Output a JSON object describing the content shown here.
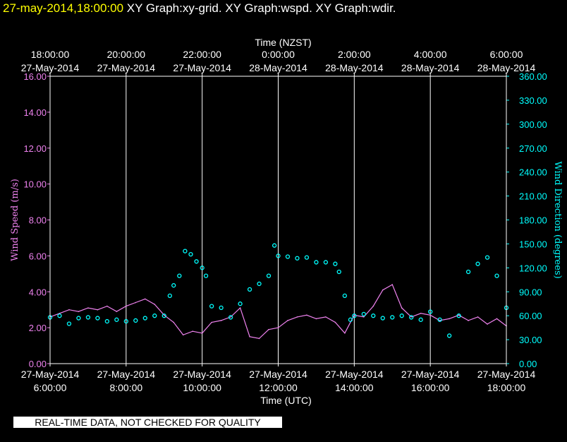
{
  "header": {
    "timestamp": "27-may-2014,18:00:00",
    "graphs": "XY Graph:xy-grid.  XY Graph:wspd.  XY Graph:wdir."
  },
  "notice": "REAL-TIME DATA, NOT CHECKED FOR QUALITY",
  "colors": {
    "speed": "#ee82ee",
    "direction": "#00ffff",
    "frame": "#ffffff",
    "background": "#000000"
  },
  "chart_data": {
    "type": "line",
    "x_start_utc": "27-May-2014 6:00:00",
    "x_end_utc": "27-May-2014 18:00:00",
    "xlim_hours_utc": [
      6,
      18
    ],
    "x_bottom": {
      "label": "Time (UTC)",
      "ticks": [
        {
          "x": 6,
          "line1": "27-May-2014",
          "line2": "6:00:00"
        },
        {
          "x": 8,
          "line1": "27-May-2014",
          "line2": "8:00:00"
        },
        {
          "x": 10,
          "line1": "27-May-2014",
          "line2": "10:00:00"
        },
        {
          "x": 12,
          "line1": "27-May-2014",
          "line2": "12:00:00"
        },
        {
          "x": 14,
          "line1": "27-May-2014",
          "line2": "14:00:00"
        },
        {
          "x": 16,
          "line1": "27-May-2014",
          "line2": "16:00:00"
        },
        {
          "x": 18,
          "line1": "27-May-2014",
          "line2": "18:00:00"
        }
      ]
    },
    "x_top": {
      "label": "Time (NZST)",
      "ticks": [
        {
          "x": 6,
          "line1": "18:00:00",
          "line2": "27-May-2014"
        },
        {
          "x": 8,
          "line1": "20:00:00",
          "line2": "27-May-2014"
        },
        {
          "x": 10,
          "line1": "22:00:00",
          "line2": "27-May-2014"
        },
        {
          "x": 12,
          "line1": "0:00:00",
          "line2": "28-May-2014"
        },
        {
          "x": 14,
          "line1": "2:00:00",
          "line2": "28-May-2014"
        },
        {
          "x": 16,
          "line1": "4:00:00",
          "line2": "28-May-2014"
        },
        {
          "x": 18,
          "line1": "6:00:00",
          "line2": "28-May-2014"
        }
      ]
    },
    "y_left": {
      "label": "Wind Speed (m/s)",
      "ylim": [
        0,
        16
      ],
      "ticks": [
        "0.00",
        "2.00",
        "4.00",
        "6.00",
        "8.00",
        "10.00",
        "12.00",
        "14.00",
        "16.00"
      ]
    },
    "y_right": {
      "label": "Wind Direction (degrees)",
      "ylim": [
        0,
        360
      ],
      "ticks": [
        "0.00",
        "30.00",
        "60.00",
        "90.00",
        "120.00",
        "150.00",
        "180.00",
        "210.00",
        "240.00",
        "270.00",
        "300.00",
        "330.00",
        "360.00"
      ]
    },
    "grid": "vertical",
    "series": [
      {
        "axis": "left",
        "style": "line",
        "x": [
          6.0,
          6.25,
          6.5,
          6.75,
          7.0,
          7.25,
          7.5,
          7.75,
          8.0,
          8.25,
          8.5,
          8.75,
          9.0,
          9.25,
          9.5,
          9.75,
          10.0,
          10.25,
          10.5,
          10.75,
          11.0,
          11.25,
          11.5,
          11.75,
          12.0,
          12.25,
          12.5,
          12.75,
          13.0,
          13.25,
          13.5,
          13.75,
          14.0,
          14.25,
          14.5,
          14.75,
          15.0,
          15.25,
          15.5,
          15.75,
          16.0,
          16.25,
          16.5,
          16.75,
          17.0,
          17.25,
          17.5,
          17.75,
          18.0
        ],
        "y": [
          2.6,
          2.8,
          3.0,
          2.9,
          3.1,
          3.0,
          3.2,
          2.9,
          3.2,
          3.4,
          3.6,
          3.3,
          2.7,
          2.3,
          1.6,
          1.8,
          1.7,
          2.3,
          2.4,
          2.6,
          3.1,
          1.5,
          1.4,
          1.9,
          2.0,
          2.4,
          2.6,
          2.7,
          2.5,
          2.6,
          2.3,
          1.7,
          2.7,
          2.6,
          3.2,
          4.1,
          4.4,
          3.1,
          2.6,
          2.8,
          2.7,
          2.4,
          2.5,
          2.7,
          2.4,
          2.6,
          2.2,
          2.5,
          2.1
        ]
      },
      {
        "axis": "right",
        "style": "markers",
        "x": [
          6.0,
          6.25,
          6.5,
          6.75,
          7.0,
          7.25,
          7.5,
          7.75,
          8.0,
          8.25,
          8.5,
          8.75,
          9.0,
          9.15,
          9.25,
          9.4,
          9.55,
          9.7,
          9.85,
          10.0,
          10.1,
          10.25,
          10.5,
          10.75,
          11.0,
          11.25,
          11.5,
          11.75,
          11.9,
          12.0,
          12.25,
          12.5,
          12.75,
          13.0,
          13.25,
          13.5,
          13.6,
          13.75,
          13.9,
          14.0,
          14.25,
          14.5,
          14.75,
          15.0,
          15.25,
          15.5,
          15.75,
          16.0,
          16.25,
          16.5,
          16.75,
          17.0,
          17.25,
          17.5,
          17.75,
          18.0
        ],
        "y": [
          58,
          60,
          50,
          57,
          58,
          57,
          53,
          55,
          53,
          54,
          57,
          60,
          60,
          85,
          98,
          110,
          141,
          137,
          128,
          120,
          110,
          72,
          70,
          58,
          75,
          93,
          100,
          110,
          148,
          135,
          134,
          132,
          133,
          127,
          127,
          125,
          115,
          85,
          55,
          60,
          62,
          60,
          57,
          58,
          60,
          58,
          55,
          65,
          55,
          35,
          60,
          115,
          125,
          133,
          110,
          70
        ]
      }
    ]
  }
}
